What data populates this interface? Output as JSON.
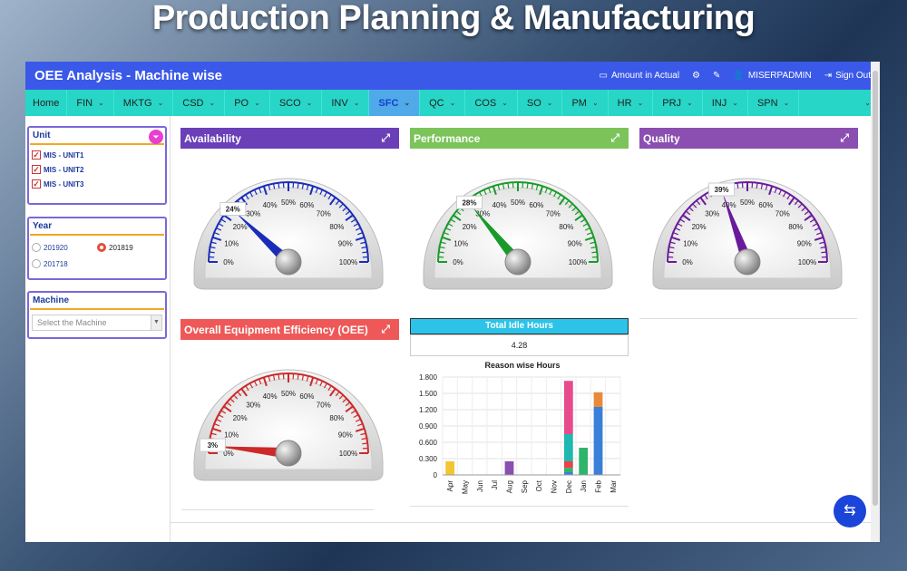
{
  "banner": {
    "title": "Production Planning & Manufacturing"
  },
  "header": {
    "title": "OEE Analysis - Machine wise",
    "amount_label": "Amount in Actual",
    "user": "MISERPADMIN",
    "signout": "Sign Out"
  },
  "nav": {
    "home": "Home",
    "items": [
      "FIN",
      "MKTG",
      "CSD",
      "PO",
      "SCO",
      "INV",
      "SFC",
      "QC",
      "COS",
      "SO",
      "PM",
      "HR",
      "PRJ",
      "INJ",
      "SPN"
    ],
    "active": "SFC"
  },
  "filters": {
    "unit": {
      "title": "Unit",
      "items": [
        "MIS - UNIT1",
        "MIS - UNIT2",
        "MIS - UNIT3"
      ]
    },
    "year": {
      "title": "Year",
      "options": [
        "201920",
        "201819",
        "201718"
      ],
      "selected": "201819"
    },
    "machine": {
      "title": "Machine",
      "placeholder": "Select the Machine"
    }
  },
  "panels": {
    "availability": {
      "title": "Availability",
      "value": 24,
      "label": "24%",
      "color": "#1a2db8",
      "header_color": "#6a3fb8"
    },
    "performance": {
      "title": "Performance",
      "value": 28,
      "label": "28%",
      "color": "#1a9a2a",
      "header_color": "#7cc35a"
    },
    "quality": {
      "title": "Quality",
      "value": 39,
      "label": "39%",
      "color": "#6a1a9a",
      "header_color": "#8a4fb0"
    },
    "oee": {
      "title": "Overall Equipment Efficiency (OEE)",
      "value": 3,
      "label": "3%",
      "color": "#cc2a2a",
      "header_color": "#ef5858"
    }
  },
  "gauge_ticks": [
    "0%",
    "10%",
    "20%",
    "30%",
    "40%",
    "50%",
    "60%",
    "70%",
    "80%",
    "90%",
    "100%"
  ],
  "idle": {
    "title": "Total Idle Hours",
    "value": "4.28"
  },
  "chart_data": {
    "type": "bar",
    "title": "Reason wise Hours",
    "categories": [
      "Apr",
      "May",
      "Jun",
      "Jul",
      "Aug",
      "Sep",
      "Oct",
      "Nov",
      "Dec",
      "Jan",
      "Feb",
      "Mar"
    ],
    "stacked": true,
    "ylim": [
      0,
      1.8
    ],
    "yticks": [
      "0",
      "0.300",
      "0.600",
      "0.900",
      "1.200",
      "1.500",
      "1.800"
    ],
    "series": [
      {
        "color": "#3a7fd8",
        "values": [
          0,
          0,
          0,
          0,
          0,
          0,
          0,
          0,
          0.05,
          0,
          1.25,
          0
        ]
      },
      {
        "color": "#2fb56a",
        "values": [
          0,
          0,
          0,
          0,
          0,
          0,
          0,
          0,
          0.08,
          0.5,
          0,
          0
        ]
      },
      {
        "color": "#e8424a",
        "values": [
          0,
          0,
          0,
          0,
          0,
          0,
          0,
          0,
          0.12,
          0,
          0,
          0
        ]
      },
      {
        "color": "#1fb8b0",
        "values": [
          0,
          0,
          0,
          0,
          0,
          0,
          0,
          0,
          0.5,
          0,
          0,
          0
        ]
      },
      {
        "color": "#e84b8c",
        "values": [
          0,
          0,
          0,
          0,
          0,
          0,
          0,
          0,
          0.98,
          0,
          0,
          0
        ]
      },
      {
        "color": "#e88a3a",
        "values": [
          0,
          0,
          0,
          0,
          0,
          0,
          0,
          0,
          0,
          0,
          0.27,
          0
        ]
      },
      {
        "color": "#f2c632",
        "values": [
          0.25,
          0,
          0,
          0,
          0,
          0,
          0,
          0,
          0,
          0,
          0,
          0
        ]
      },
      {
        "color": "#8a4fb0",
        "values": [
          0,
          0,
          0,
          0,
          0.25,
          0,
          0,
          0,
          0,
          0,
          0,
          0
        ]
      }
    ]
  }
}
